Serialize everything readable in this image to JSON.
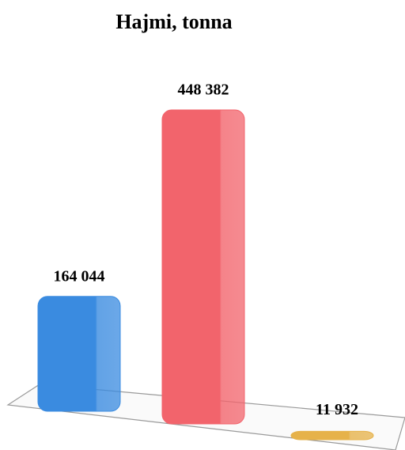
{
  "chart_data": {
    "type": "bar",
    "title": "Hajmi, tonna",
    "categories": [
      null,
      null,
      null
    ],
    "values": [
      164044,
      448382,
      11932
    ],
    "value_labels": [
      "164 044",
      "448 382",
      "11 932"
    ],
    "colors": [
      "#3a8be0",
      "#f2646c",
      "#e6b24a"
    ]
  }
}
